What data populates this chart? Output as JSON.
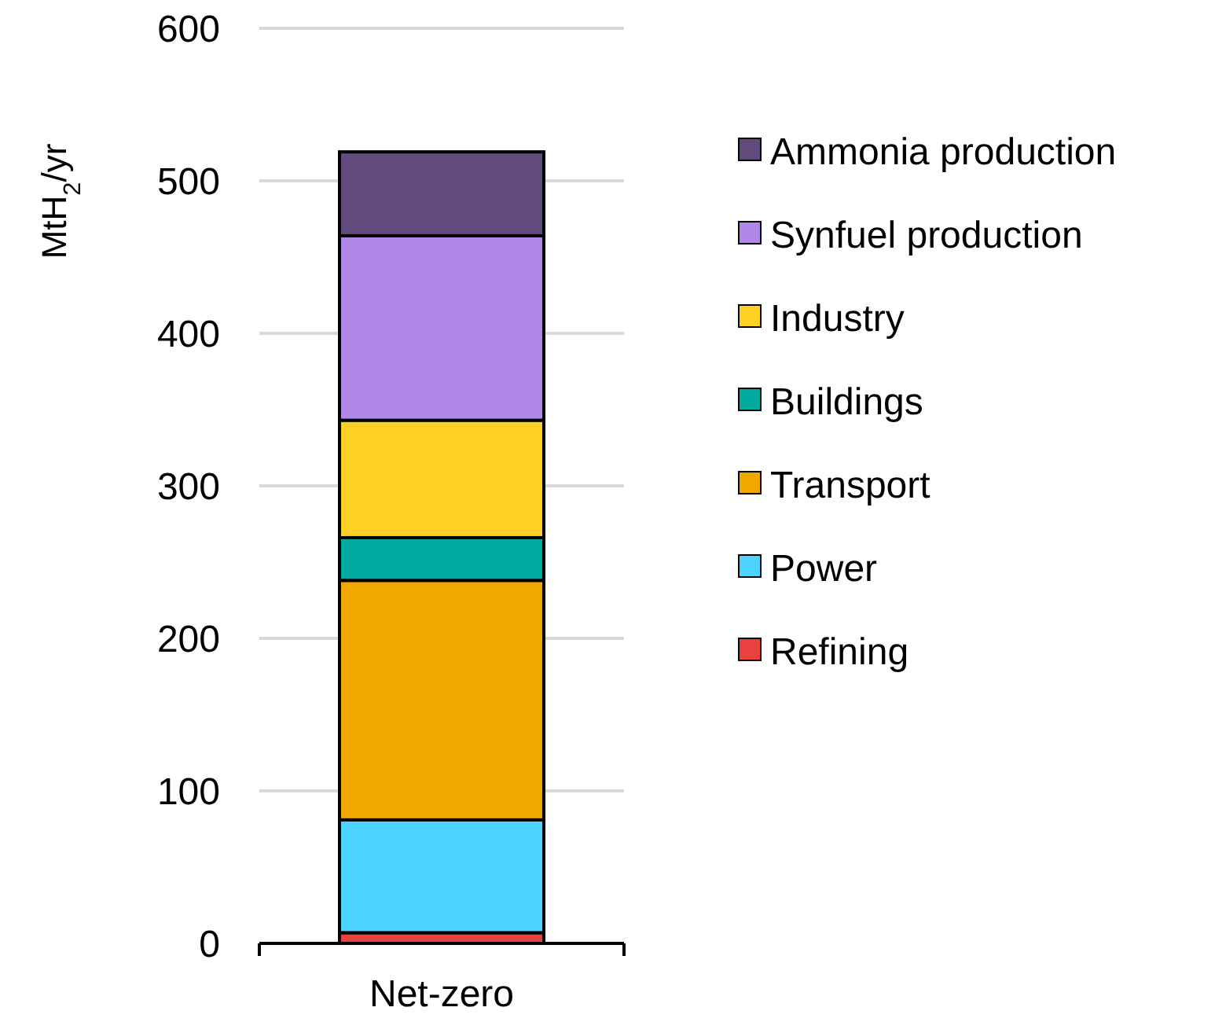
{
  "chart_data": {
    "type": "bar",
    "stacked": true,
    "ylabel": "MtH$_{2}$/yr",
    "categories": [
      "Net-zero"
    ],
    "series": [
      {
        "name": "Refining",
        "color": "#e8423f",
        "values": [
          7
        ]
      },
      {
        "name": "Power",
        "color": "#4cd3ff",
        "values": [
          74
        ]
      },
      {
        "name": "Transport",
        "color": "#f0a800",
        "values": [
          157
        ]
      },
      {
        "name": "Buildings",
        "color": "#00aba0",
        "values": [
          28
        ]
      },
      {
        "name": "Industry",
        "color": "#fdd023",
        "values": [
          77
        ]
      },
      {
        "name": "Synfuel production",
        "color": "#b187e8",
        "values": [
          121
        ]
      },
      {
        "name": "Ammonia production",
        "color": "#634a7e",
        "values": [
          55
        ]
      }
    ],
    "ylim": [
      0,
      600
    ],
    "yticks": [
      0,
      100,
      200,
      300,
      400,
      500,
      600
    ],
    "grid": "y",
    "legend": "right"
  }
}
